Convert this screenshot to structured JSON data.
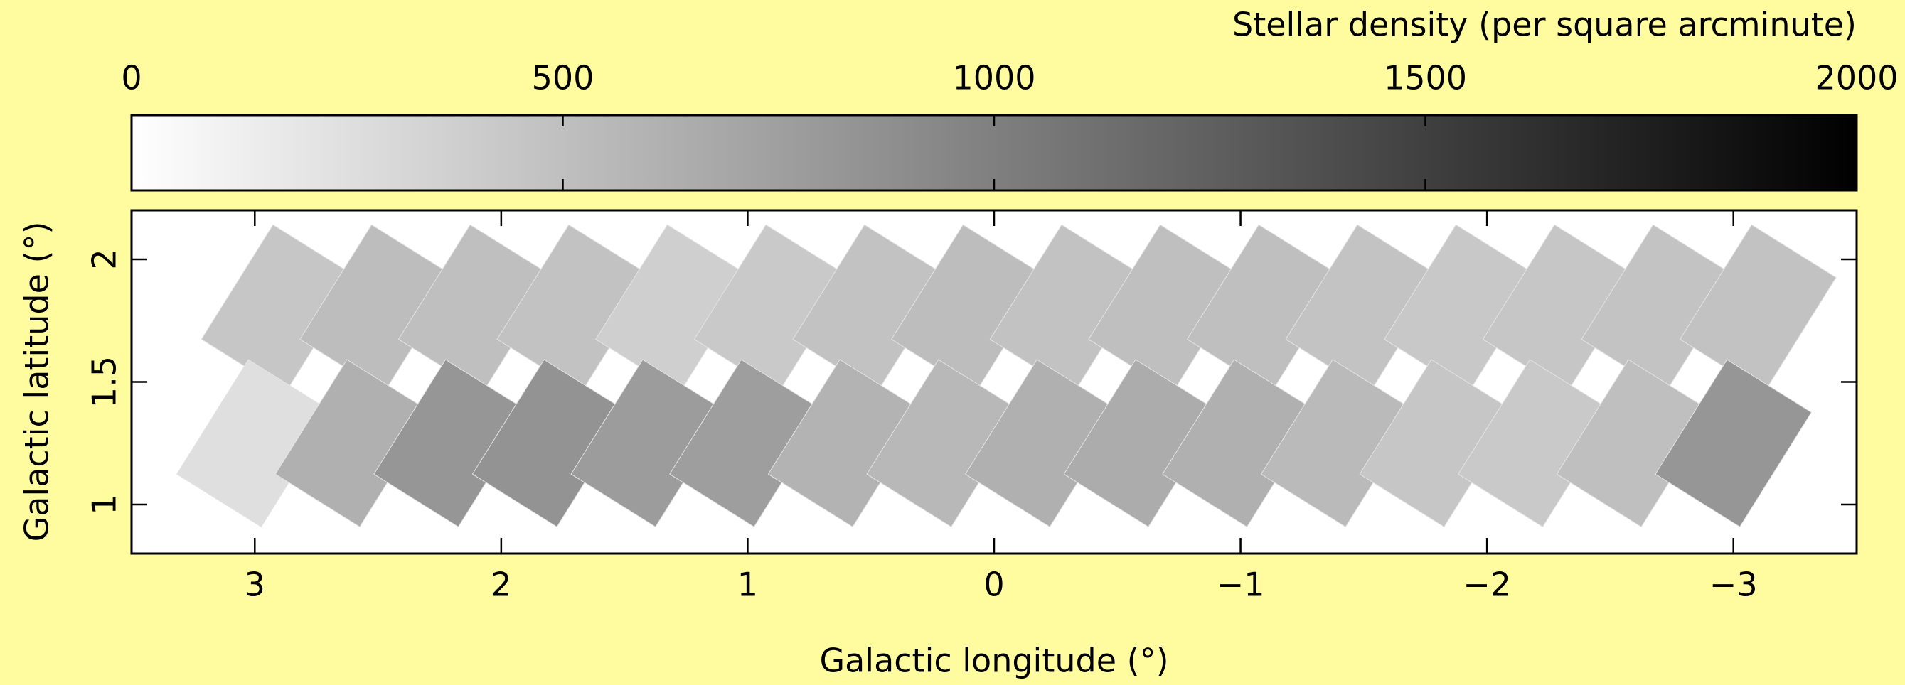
{
  "chart_data": {
    "type": "tile_map",
    "xlabel": "Galactic longitude (°)",
    "ylabel": "Galactic latitude (°)",
    "xlim": [
      3.5,
      -3.5
    ],
    "ylim": [
      0.8,
      2.2
    ],
    "xticks": [
      3,
      2,
      1,
      0,
      {
        "value": -1,
        "label": "−1"
      },
      {
        "value": -2,
        "label": "−2"
      },
      {
        "value": -3,
        "label": "−3"
      }
    ],
    "yticks": [
      1,
      1.5,
      2
    ],
    "colorbar": {
      "label": "Stellar density (per square arcminute)",
      "clim": [
        0,
        2000
      ],
      "ticks": [
        0,
        500,
        1000,
        1500,
        2000
      ],
      "color_low": "#ffffff",
      "color_high": "#000000"
    },
    "tiles": {
      "l": [
        2.9,
        2.5,
        2.1,
        1.7,
        1.3,
        0.9,
        0.5,
        0.1,
        -0.3,
        -0.7,
        -1.1,
        -1.5,
        -1.9,
        -2.3,
        -2.7,
        -3.1,
        3.0,
        2.6,
        2.2,
        1.8,
        1.4,
        1.0,
        0.6,
        0.2,
        -0.2,
        -0.6,
        -1.0,
        -1.4,
        -1.8,
        -2.2,
        -2.6,
        -3.0
      ],
      "b": [
        1.8,
        1.8,
        1.8,
        1.8,
        1.8,
        1.8,
        1.8,
        1.8,
        1.8,
        1.8,
        1.8,
        1.8,
        1.8,
        1.8,
        1.8,
        1.8,
        1.25,
        1.25,
        1.25,
        1.25,
        1.25,
        1.25,
        1.25,
        1.25,
        1.25,
        1.25,
        1.25,
        1.25,
        1.25,
        1.25,
        1.25,
        1.25
      ],
      "density": [
        450,
        520,
        500,
        480,
        380,
        420,
        480,
        520,
        480,
        500,
        500,
        470,
        430,
        450,
        470,
        480,
        250,
        620,
        820,
        850,
        780,
        760,
        600,
        560,
        620,
        650,
        620,
        540,
        450,
        420,
        500,
        820
      ]
    }
  }
}
